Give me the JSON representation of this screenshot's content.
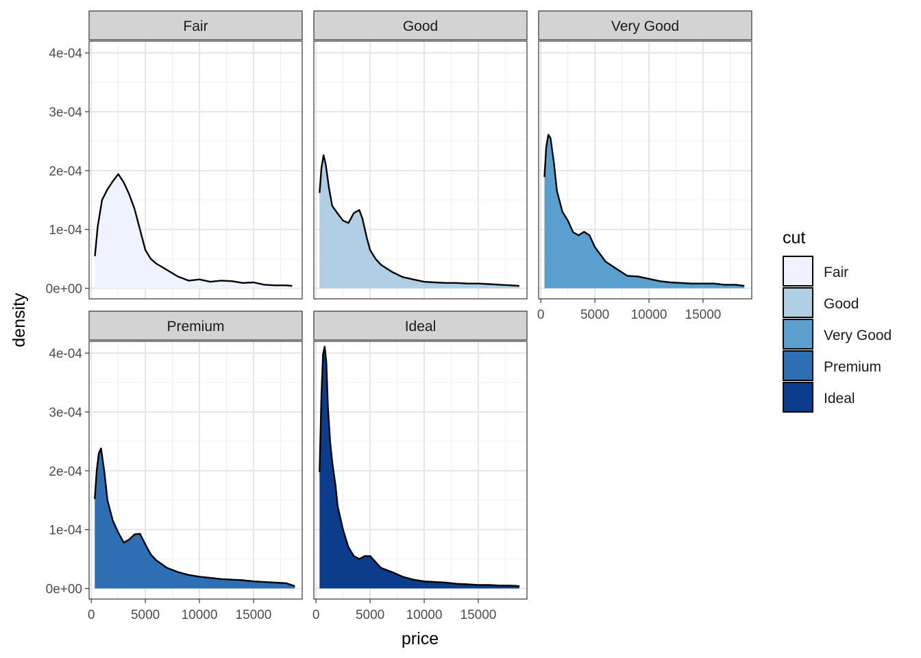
{
  "chart_data": {
    "type": "area",
    "xlabel": "price",
    "ylabel": "density",
    "legend": {
      "title": "cut",
      "position": "right"
    },
    "facet_strip_color": "#d3d3d3",
    "grid": true,
    "xlim": [
      -200,
      19500
    ],
    "ylim": [
      -1.8e-05,
      0.00042
    ],
    "x_ticks": [
      0,
      5000,
      10000,
      15000
    ],
    "x_tick_labels": [
      "0",
      "5000",
      "10000",
      "15000"
    ],
    "y_ticks": [
      0,
      0.0001,
      0.0002,
      0.0003,
      0.0004
    ],
    "y_tick_labels": [
      "0e+00",
      "1e-04",
      "2e-04",
      "3e-04",
      "4e-04"
    ],
    "series": [
      {
        "name": "Fair",
        "color": "#eff3ff",
        "x": [
          337,
          600,
          1000,
          1500,
          2000,
          2500,
          3000,
          3500,
          4000,
          4500,
          5000,
          5500,
          6000,
          7000,
          8000,
          9000,
          10000,
          11000,
          12000,
          13000,
          14000,
          15000,
          16000,
          17000,
          18000,
          18574
        ],
        "y": [
          5.45e-05,
          0.000105,
          0.00015,
          0.000168,
          0.000182,
          0.000194,
          0.00018,
          0.00016,
          0.000135,
          0.0001,
          6.5e-05,
          5e-05,
          4.2e-05,
          3.1e-05,
          2e-05,
          1.3e-05,
          1.5e-05,
          1.1e-05,
          1.3e-05,
          1.2e-05,
          9e-06,
          1e-05,
          6e-06,
          5e-06,
          5e-06,
          4e-06
        ]
      },
      {
        "name": "Good",
        "color": "#b0cfe5",
        "x": [
          327,
          500,
          700,
          900,
          1200,
          1500,
          2000,
          2500,
          3000,
          3500,
          4000,
          4300,
          4700,
          5000,
          5500,
          6000,
          7000,
          8000,
          9000,
          10000,
          11000,
          12000,
          13000,
          14000,
          15000,
          16000,
          17000,
          18000,
          18788
        ],
        "y": [
          0.000162,
          0.000205,
          0.000226,
          0.00021,
          0.00017,
          0.00014,
          0.000127,
          0.000115,
          0.000111,
          0.000128,
          0.000133,
          0.000118,
          8.5e-05,
          6.5e-05,
          5e-05,
          4e-05,
          2.8e-05,
          1.9e-05,
          1.5e-05,
          1.1e-05,
          1e-05,
          9e-06,
          9e-06,
          8e-06,
          8e-06,
          7e-06,
          6e-06,
          5e-06,
          4e-06
        ]
      },
      {
        "name": "Very Good",
        "color": "#5b9fce",
        "x": [
          336,
          500,
          700,
          900,
          1200,
          1500,
          2000,
          2500,
          3000,
          3500,
          4000,
          4500,
          5000,
          6000,
          7000,
          8000,
          9000,
          10000,
          11000,
          12000,
          13000,
          14000,
          15000,
          16000,
          17000,
          18000,
          18818
        ],
        "y": [
          0.000189,
          0.00024,
          0.000261,
          0.000255,
          0.000215,
          0.000165,
          0.00013,
          0.000115,
          9.5e-05,
          9e-05,
          9.6e-05,
          9e-05,
          7e-05,
          4.5e-05,
          3.3e-05,
          2.1e-05,
          2e-05,
          1.6e-05,
          1.2e-05,
          1e-05,
          9e-06,
          8e-06,
          8e-06,
          8e-06,
          6e-06,
          6e-06,
          4e-06
        ]
      },
      {
        "name": "Premium",
        "color": "#2e6fb3",
        "x": [
          326,
          500,
          700,
          900,
          1200,
          1500,
          2000,
          2500,
          3000,
          3500,
          4000,
          4500,
          5000,
          5500,
          6000,
          7000,
          8000,
          9000,
          10000,
          11000,
          12000,
          13000,
          14000,
          15000,
          16000,
          17000,
          18000,
          18823
        ],
        "y": [
          0.000152,
          0.0002,
          0.00023,
          0.000238,
          0.0002,
          0.00015,
          0.000115,
          9.5e-05,
          7.8e-05,
          8.3e-05,
          9.2e-05,
          9.3e-05,
          7.5e-05,
          5.8e-05,
          4.8e-05,
          3.5e-05,
          2.8e-05,
          2.3e-05,
          2e-05,
          1.8e-05,
          1.6e-05,
          1.5e-05,
          1.4e-05,
          1.2e-05,
          1.1e-05,
          1e-05,
          9e-06,
          4e-06
        ]
      },
      {
        "name": "Ideal",
        "color": "#0c3d8c",
        "x": [
          326,
          500,
          650,
          800,
          950,
          1100,
          1300,
          1500,
          1800,
          2000,
          2500,
          3000,
          3500,
          4000,
          4500,
          5000,
          5500,
          6000,
          7000,
          8000,
          9000,
          10000,
          11000,
          12000,
          13000,
          14000,
          15000,
          16000,
          17000,
          18000,
          18806
        ],
        "y": [
          0.000198,
          0.00033,
          0.000398,
          0.000411,
          0.000385,
          0.00031,
          0.00025,
          0.000215,
          0.000175,
          0.00014,
          0.0001,
          7e-05,
          5.5e-05,
          5e-05,
          5.5e-05,
          5.5e-05,
          4.5e-05,
          3.5e-05,
          2.8e-05,
          2e-05,
          1.5e-05,
          1.2e-05,
          1.1e-05,
          1e-05,
          8e-06,
          7e-06,
          6e-06,
          6e-06,
          5e-06,
          5e-06,
          4e-06
        ]
      }
    ]
  }
}
